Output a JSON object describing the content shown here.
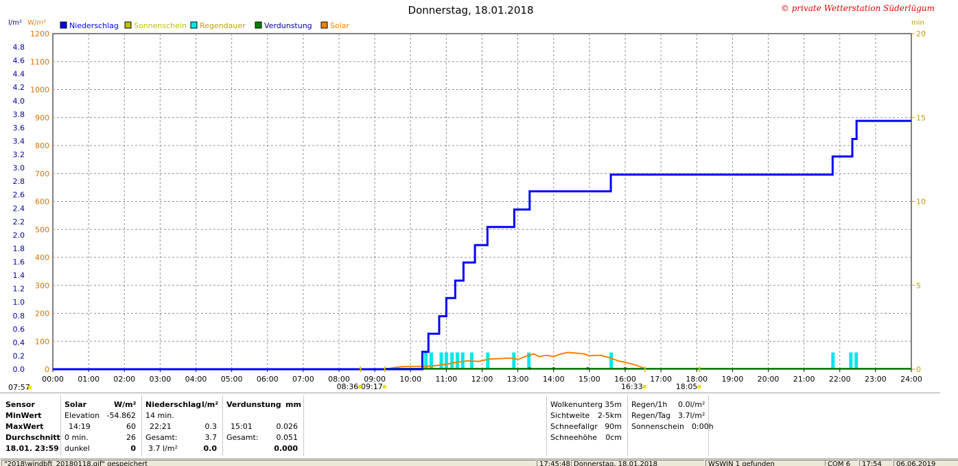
{
  "chart_data": {
    "type": "line",
    "title": "Donnerstag, 18.01.2018",
    "watermark": "© private Wetterstation Süderlügum",
    "left_axis_unit": "l/m²",
    "left2_axis_unit": "W/m²",
    "right_axis_unit": "min",
    "left_axis_ticks": [
      "0.0",
      "0.2",
      "0.4",
      "0.6",
      "0.8",
      "1.0",
      "1.2",
      "1.4",
      "1.6",
      "1.8",
      "2.0",
      "2.2",
      "2.4",
      "2.6",
      "2.8",
      "3.0",
      "3.2",
      "3.4",
      "3.6",
      "3.8",
      "4.0",
      "4.2",
      "4.4",
      "4.6",
      "4.8"
    ],
    "left2_axis_ticks": [
      "0",
      "100",
      "200",
      "300",
      "400",
      "500",
      "600",
      "700",
      "800",
      "900",
      "1000",
      "1100",
      "1200"
    ],
    "right_axis_ticks": [
      "0",
      "5",
      "10",
      "15",
      "20"
    ],
    "x_ticks": [
      "00:00",
      "01:00",
      "02:00",
      "03:00",
      "04:00",
      "05:00",
      "06:00",
      "07:00",
      "08:00",
      "09:00",
      "10:00",
      "11:00",
      "12:00",
      "13:00",
      "14:00",
      "15:00",
      "16:00",
      "17:00",
      "18:00",
      "19:00",
      "20:00",
      "21:00",
      "22:00",
      "23:00",
      "24:00"
    ],
    "ylim_precip": [
      0,
      5.0
    ],
    "ylim_solar": [
      0,
      1200
    ],
    "ylim_minutes": [
      0,
      20
    ],
    "xlim_hours": [
      0,
      24
    ],
    "grid": true,
    "legend": [
      {
        "name": "Niederschlag",
        "color": "#0000ff",
        "text_color": "#0000ff"
      },
      {
        "name": "Sonnenschein",
        "color": "#c0c000",
        "text_color": "#c0c000"
      },
      {
        "name": "Regendauer",
        "color": "#00e8e8",
        "text_color": "#c0a000"
      },
      {
        "name": "Verdunstung",
        "color": "#008000",
        "text_color": "#0000a0"
      },
      {
        "name": "Solar",
        "color": "#ff8000",
        "text_color": "#ff8000"
      }
    ],
    "precip_series": {
      "name": "Niederschlag",
      "points": [
        [
          0,
          0
        ],
        [
          10.33,
          0
        ],
        [
          10.33,
          0.26
        ],
        [
          10.5,
          0.26
        ],
        [
          10.5,
          0.53
        ],
        [
          10.8,
          0.53
        ],
        [
          10.8,
          0.79
        ],
        [
          11.0,
          0.79
        ],
        [
          11.0,
          1.06
        ],
        [
          11.25,
          1.06
        ],
        [
          11.25,
          1.32
        ],
        [
          11.48,
          1.32
        ],
        [
          11.48,
          1.59
        ],
        [
          11.8,
          1.59
        ],
        [
          11.8,
          1.85
        ],
        [
          12.15,
          1.85
        ],
        [
          12.15,
          2.12
        ],
        [
          12.9,
          2.12
        ],
        [
          12.9,
          2.38
        ],
        [
          13.33,
          2.38
        ],
        [
          13.33,
          2.65
        ],
        [
          15.6,
          2.65
        ],
        [
          15.6,
          2.9
        ],
        [
          21.8,
          2.9
        ],
        [
          21.8,
          3.17
        ],
        [
          22.35,
          3.17
        ],
        [
          22.35,
          3.43
        ],
        [
          22.47,
          3.43
        ],
        [
          22.47,
          3.7
        ],
        [
          24,
          3.7
        ]
      ]
    },
    "rain_duration_bars_hours": [
      10.42,
      10.57,
      10.85,
      10.99,
      11.15,
      11.3,
      11.45,
      11.7,
      12.15,
      12.88,
      13.3,
      15.6,
      21.8,
      22.3,
      22.45
    ],
    "solar_series": {
      "name": "Solar",
      "points": [
        [
          9.3,
          0
        ],
        [
          9.5,
          5
        ],
        [
          9.75,
          9
        ],
        [
          10.0,
          10
        ],
        [
          10.3,
          10
        ],
        [
          10.6,
          11
        ],
        [
          11.0,
          18
        ],
        [
          11.3,
          25
        ],
        [
          11.6,
          30
        ],
        [
          11.9,
          28
        ],
        [
          12.2,
          36
        ],
        [
          12.5,
          38
        ],
        [
          12.8,
          40
        ],
        [
          13.0,
          35
        ],
        [
          13.2,
          45
        ],
        [
          13.45,
          55
        ],
        [
          13.6,
          45
        ],
        [
          13.8,
          50
        ],
        [
          14.0,
          45
        ],
        [
          14.2,
          55
        ],
        [
          14.4,
          60
        ],
        [
          14.6,
          58
        ],
        [
          14.85,
          55
        ],
        [
          15.0,
          48
        ],
        [
          15.3,
          50
        ],
        [
          15.6,
          40
        ],
        [
          15.8,
          30
        ],
        [
          16.0,
          25
        ],
        [
          16.3,
          15
        ],
        [
          16.5,
          5
        ],
        [
          16.6,
          0
        ]
      ]
    },
    "evaporation_points": [
      [
        13.33,
        0
      ],
      [
        14.0,
        0
      ],
      [
        14.95,
        0
      ],
      [
        16.0,
        0
      ]
    ],
    "sun_markers": [
      {
        "label": "07:57",
        "hour": 7.95,
        "row": 2
      },
      {
        "label": "08:36",
        "hour": 8.6,
        "row": 1
      },
      {
        "label": "09:17",
        "hour": 9.28,
        "row": 1
      },
      {
        "label": "16:33",
        "hour": 16.55,
        "row": 1
      },
      {
        "label": "18:05",
        "hour": 18.08,
        "row": 1
      }
    ]
  },
  "stats": {
    "sensor_header": "Sensor",
    "solar_header": "Solar",
    "solar_unit": "W/m²",
    "rows_labels": [
      "MinWert",
      "MaxWert",
      "Durchschnitt",
      "18.01. 23:59"
    ],
    "solar": {
      "min_label": "Elevation",
      "min_value": "-54.862",
      "max_time": "14:19",
      "max_value": "60",
      "avg_label": "0 min.",
      "avg_value": "26",
      "now_label": "dunkel",
      "now_value": "0"
    },
    "precip_header": "Niederschlag",
    "precip_unit": "l/m²",
    "precip": {
      "min_label": "14 min.",
      "max_time": "22:21",
      "max_value": "0.3",
      "total_label": "Gesamt:",
      "total_value": "3.7",
      "now_label": "3.7 l/m²",
      "now_value": "0.0"
    },
    "evap_header": "Verdunstung",
    "evap_unit": "mm",
    "evap": {
      "max_time": "15:01",
      "max_value": "0.026",
      "total_label": "Gesamt:",
      "total_value": "0.051",
      "now_value": "0.000"
    },
    "conditions": [
      {
        "label": "Wolkenunterg",
        "value": "35m"
      },
      {
        "label": "Sichtweite",
        "value": "2-5km"
      },
      {
        "label": "Schneefallgr",
        "value": "90m"
      },
      {
        "label": "Schneehöhe",
        "value": "0cm"
      }
    ],
    "rain": [
      {
        "label": "Regen/1h",
        "value": "0.0l/m²"
      },
      {
        "label": "Regen/Tag",
        "value": "3.7l/m²"
      },
      {
        "label": "Sonnenschein",
        "value": "0:00h"
      }
    ]
  },
  "statusbar": {
    "file": "\"2018\\windbft_20180118.gif\" gespeichert",
    "time": "17:45:48",
    "date": "Donnerstag, 18.01.2018",
    "device": "WSWIN 1 gefunden",
    "port": "COM 6",
    "clock": "17:54",
    "today": "06.06.2019"
  }
}
